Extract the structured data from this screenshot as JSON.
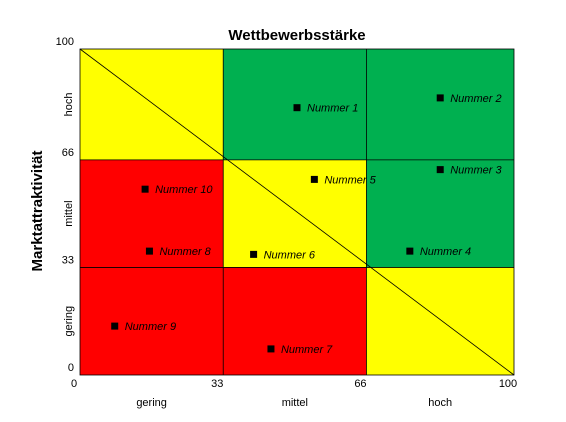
{
  "chart_data": {
    "type": "scatter",
    "title": "Wettbewerbsstärke",
    "xlabel": "",
    "ylabel": "Marktattraktivität",
    "xlim": [
      0,
      100
    ],
    "ylim": [
      0,
      100
    ],
    "x_ticks": [
      "0",
      "33",
      "66",
      "100"
    ],
    "y_ticks": [
      "100",
      "66",
      "33",
      "0"
    ],
    "x_categories": [
      "gering",
      "mittel",
      "hoch"
    ],
    "y_categories": [
      "hoch",
      "mittel",
      "gering"
    ],
    "zones": [
      [
        "#ff0000",
        "#ffff00",
        "#00b050"
      ],
      [
        "#ff0000",
        "#ff0000",
        "#ffff00"
      ],
      [
        "#ff0000",
        "#ffff00",
        "#00b050"
      ]
    ],
    "zone_grid": [
      [
        "#ffff00",
        "#00b050",
        "#00b050"
      ],
      [
        "#ff0000",
        "#ffff00",
        "#00b050"
      ],
      [
        "#ff0000",
        "#ff0000",
        "#ffff00"
      ]
    ],
    "diagonal": true,
    "points": [
      {
        "label": "Nummer 1",
        "x": 50,
        "y": 82
      },
      {
        "label": "Nummer 2",
        "x": 83,
        "y": 85
      },
      {
        "label": "Nummer 3",
        "x": 83,
        "y": 63
      },
      {
        "label": "Nummer 4",
        "x": 76,
        "y": 38
      },
      {
        "label": "Nummer 5",
        "x": 54,
        "y": 60
      },
      {
        "label": "Nummer 6",
        "x": 40,
        "y": 37
      },
      {
        "label": "Nummer 7",
        "x": 44,
        "y": 8
      },
      {
        "label": "Nummer 8",
        "x": 16,
        "y": 38
      },
      {
        "label": "Nummer 9",
        "x": 8,
        "y": 15
      },
      {
        "label": "Nummer 10",
        "x": 15,
        "y": 57
      }
    ]
  }
}
